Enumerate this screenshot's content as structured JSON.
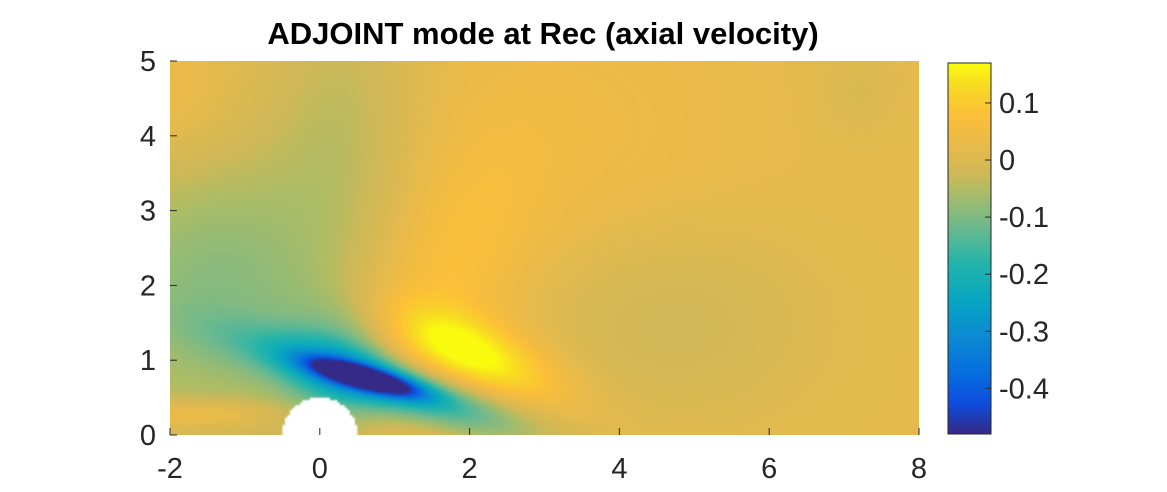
{
  "chart_data": {
    "type": "heatmap",
    "title": "ADJOINT mode at Rec (axial velocity)",
    "xlabel": "",
    "ylabel": "",
    "xlim": [
      -2,
      8
    ],
    "ylim": [
      0,
      5
    ],
    "x_ticks": [
      -2,
      0,
      2,
      4,
      6,
      8
    ],
    "x_tick_labels": [
      "-2",
      "0",
      "2",
      "4",
      "6",
      "8"
    ],
    "y_ticks": [
      0,
      1,
      2,
      3,
      4,
      5
    ],
    "y_tick_labels": [
      "0",
      "1",
      "2",
      "3",
      "4",
      "5"
    ],
    "colormap": "parula",
    "colorbar": {
      "range": [
        -0.48,
        0.17
      ],
      "ticks": [
        0.1,
        0,
        -0.1,
        -0.2,
        -0.3,
        -0.4
      ],
      "tick_labels": [
        "0.1",
        "0",
        "-0.1",
        "-0.2",
        "-0.3",
        "-0.4"
      ],
      "location": "right"
    },
    "cylinder": {
      "center_x": 0,
      "center_y": 0,
      "radius": 0.5
    },
    "background_value": 0.02,
    "features": [
      {
        "kind": "minimum",
        "x": 0.6,
        "y": 0.75,
        "value": -0.47
      },
      {
        "kind": "negative-lobe",
        "x": 0.9,
        "y": 0.7,
        "value": -0.3
      },
      {
        "kind": "maximum",
        "x": 2.0,
        "y": 1.1,
        "value": 0.16
      },
      {
        "kind": "upstream-negative-region",
        "x": -1.5,
        "y": 2.0,
        "value": -0.07
      },
      {
        "kind": "upstream-positive-strip",
        "x": -1.5,
        "y": 0.3,
        "value": 0.05
      }
    ]
  }
}
